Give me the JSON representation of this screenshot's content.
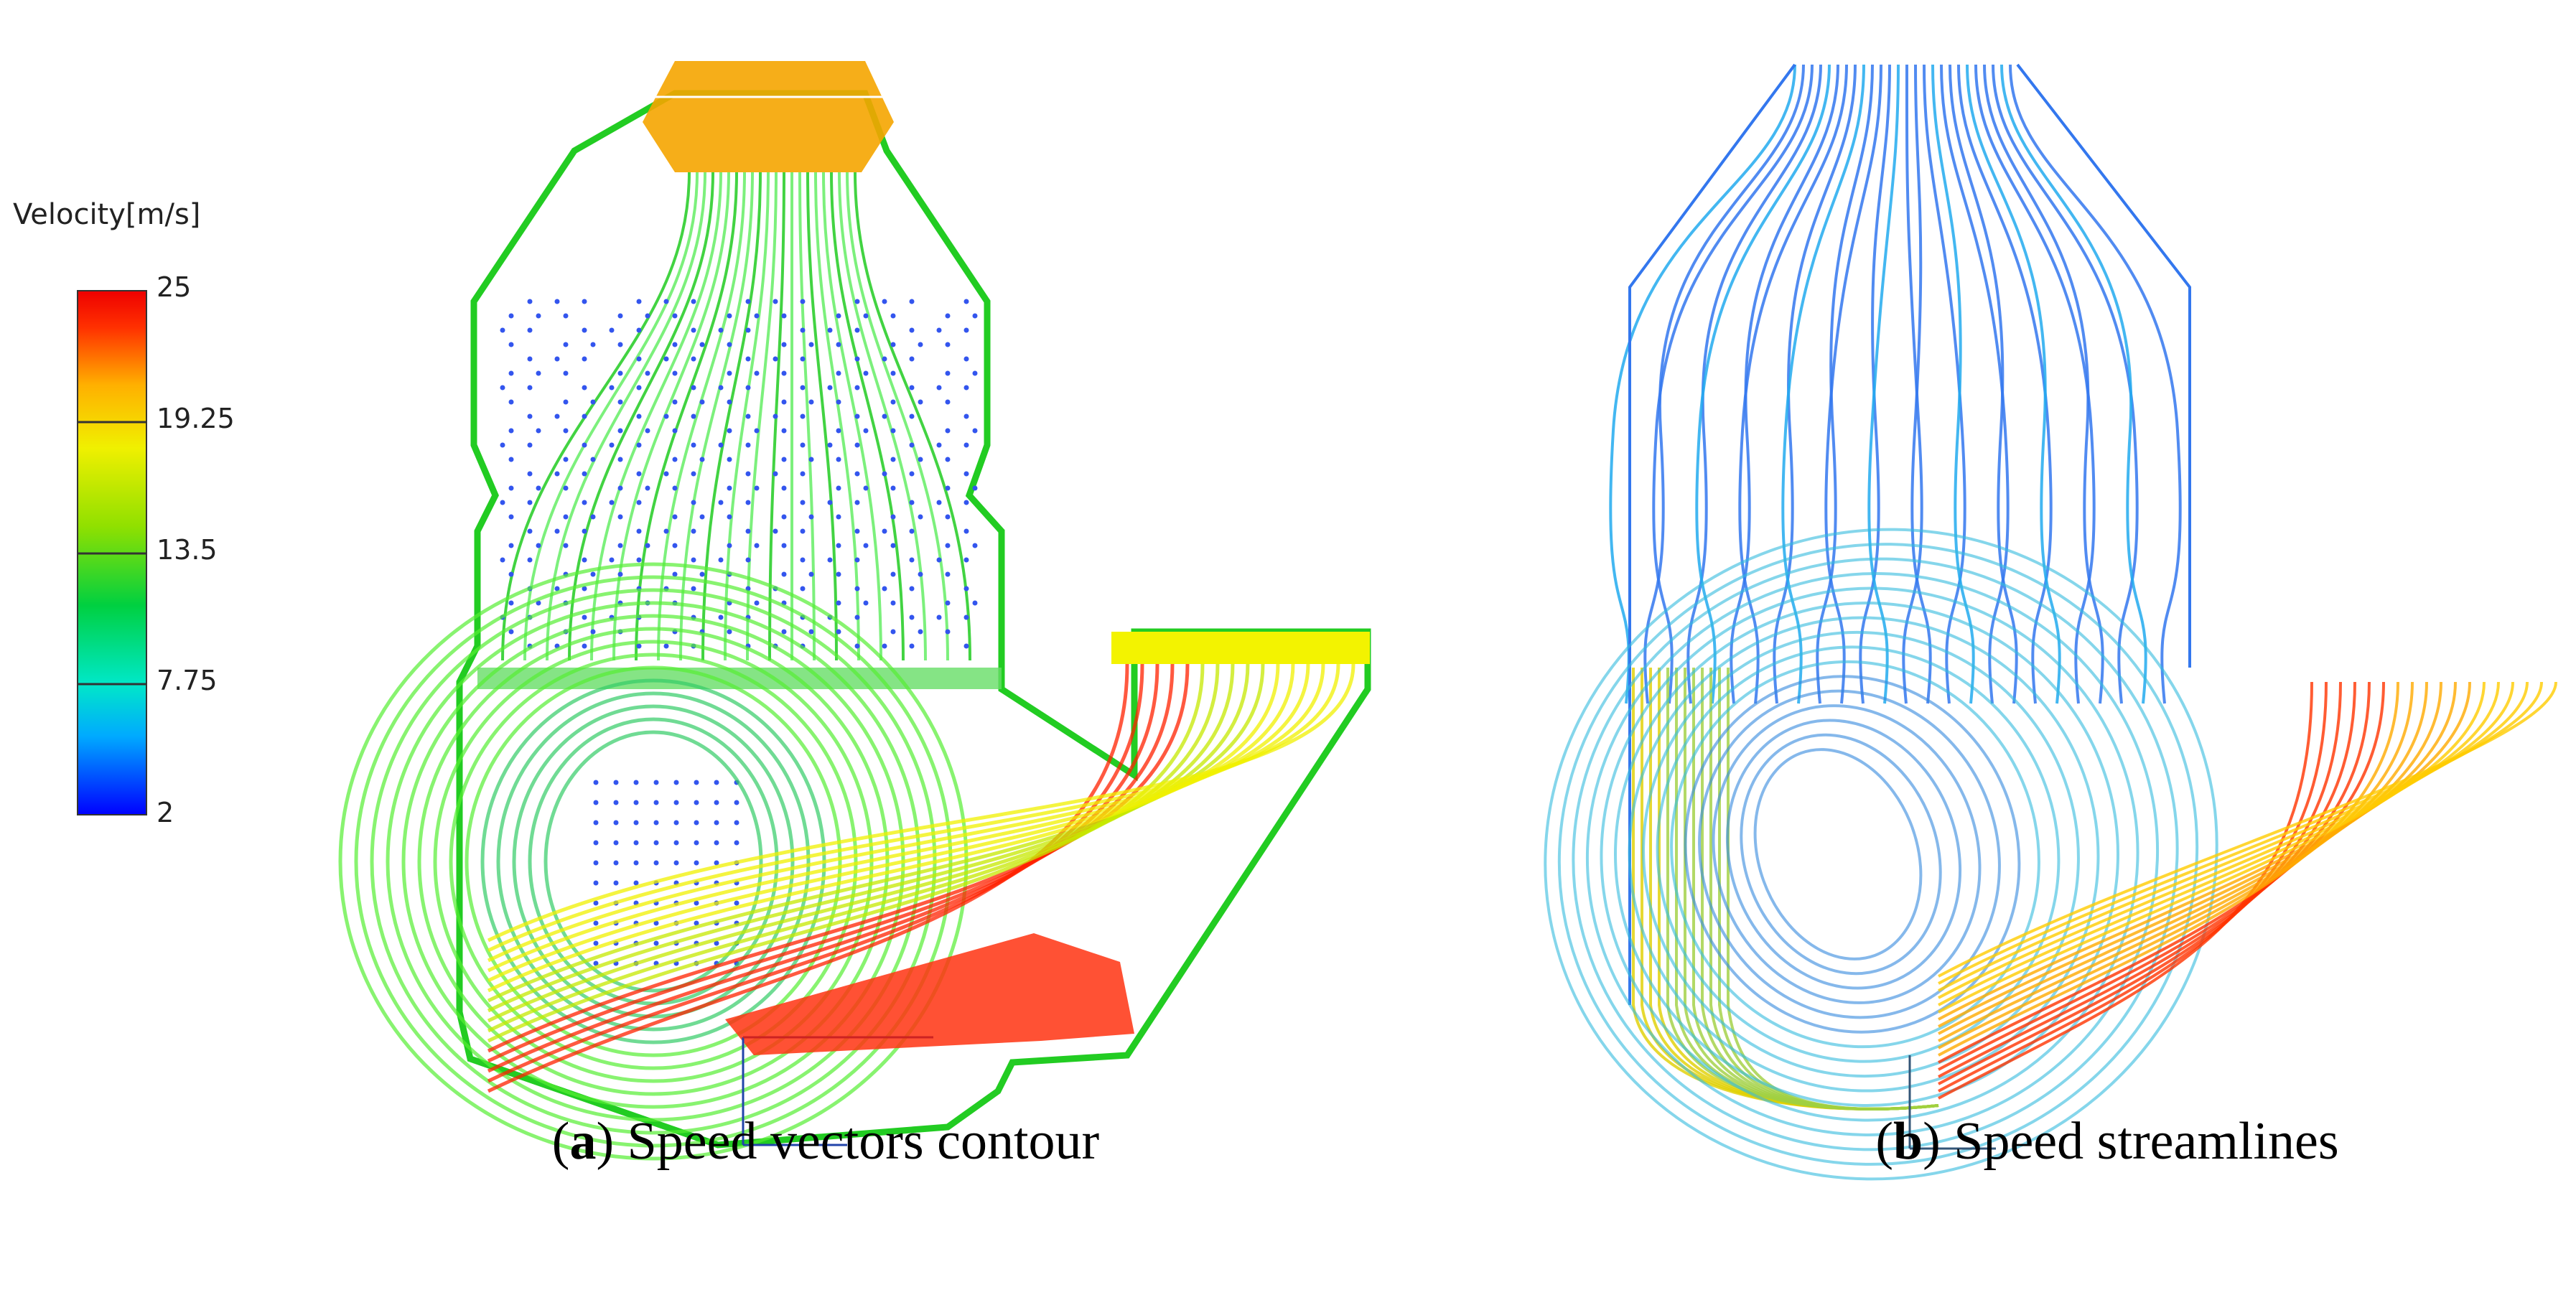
{
  "legend": {
    "title": "Velocity[m/s]",
    "ticks": [
      "25",
      "19.25",
      "13.5",
      "7.75",
      "2"
    ],
    "gradient": [
      "#0000ff",
      "#00aaff",
      "#00e8c8",
      "#00d040",
      "#90e000",
      "#f0f000",
      "#ffb000",
      "#ff3000",
      "#ee0000"
    ]
  },
  "panel_a": {
    "caption_letter": "a",
    "caption_text": " Speed vectors contour",
    "colors": {
      "inlet": "#f0a000",
      "wall": "#22cc22",
      "vector": "#3355ee",
      "outlet": "#f0f000",
      "jet": "#ff2200"
    }
  },
  "panel_b": {
    "caption_letter": "b",
    "caption_text": " Speed streamlines",
    "colors": {
      "upper": "#3377ee",
      "swirl": "#33bbdd",
      "left": "#a0d040",
      "outlet": "#ffcc00",
      "jet": "#ff3300"
    }
  }
}
